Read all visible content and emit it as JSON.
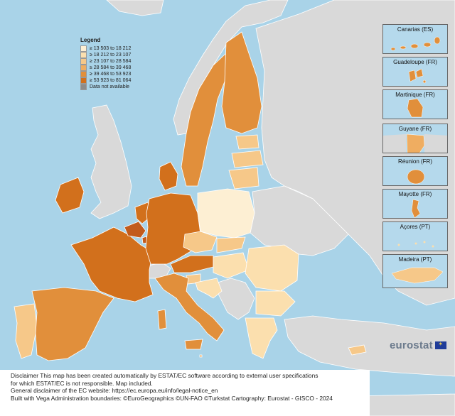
{
  "legend": {
    "title": "Legend",
    "items": [
      {
        "label": "≥ 13 503 to 18 212",
        "color": "#fdefd3"
      },
      {
        "label": "≥ 18 212 to 23 107",
        "color": "#fbdfae"
      },
      {
        "label": "≥ 23 107 to 28 584",
        "color": "#f6c889"
      },
      {
        "label": "≥ 28 584 to 39 468",
        "color": "#efad61"
      },
      {
        "label": "≥ 39 468 to 53 923",
        "color": "#e18f3b"
      },
      {
        "label": "≥ 53 923 to 81 064",
        "color": "#d2701c"
      },
      {
        "label": "Data not available",
        "color": "#8c8c8c"
      }
    ]
  },
  "insets": [
    {
      "label": "Canarias (ES)"
    },
    {
      "label": "Guadeloupe (FR)"
    },
    {
      "label": "Martinique (FR)"
    },
    {
      "label": "Guyane (FR)"
    },
    {
      "label": "Réunion (FR)"
    },
    {
      "label": "Mayotte (FR)"
    },
    {
      "label": "Açores (PT)"
    },
    {
      "label": "Madeira (PT)"
    }
  ],
  "brand": {
    "text": "eurostat",
    "flag_glyph": "✶"
  },
  "disclaimer": {
    "line1": "Disclaimer This map has been created automatically by ESTAT/EC software according to external user specifications",
    "line2": "for which ESTAT/EC is not responsible. Map included.",
    "line3": "General disclaimer of the EC website: https://ec.europa.eu/info/legal-notice_en",
    "line4": "Built with Vega Administration boundaries: ©EuroGeographics ©UN-FAO ©Turkstat Cartography: Eurostat - GISCO - 2024"
  },
  "colors": {
    "sea": "#a9d3e8",
    "non_eu": "#d9d9d9",
    "border": "#ffffff"
  }
}
